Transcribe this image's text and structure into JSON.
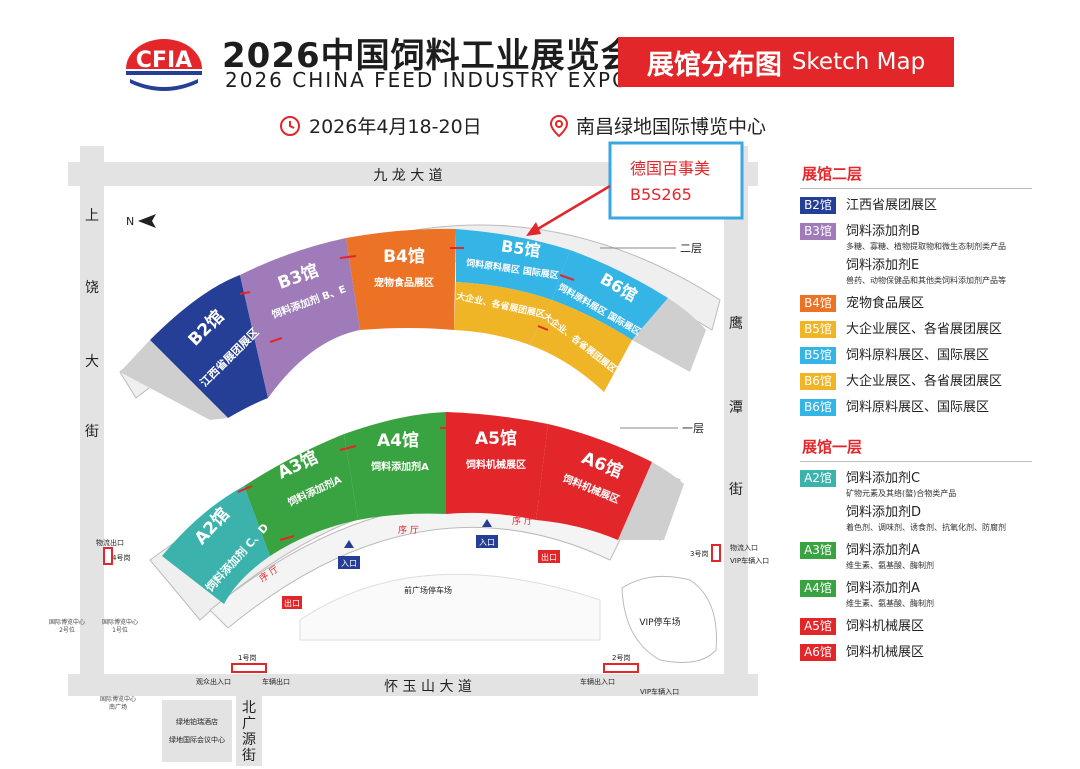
{
  "header": {
    "logo_text": "CFIA",
    "title_cn": "2026中国饲料工业展览会",
    "title_en": "2026 CHINA FEED INDUSTRY EXPO",
    "badge_cn": "展馆分布图",
    "badge_en": "Sketch Map",
    "date": "2026年4月18-20日",
    "venue": "南昌绿地国际博览中心"
  },
  "callout": {
    "line1": "德国百事美",
    "line2": "B5S265",
    "color": "#e3262a",
    "border": "#3aa7e0"
  },
  "roads": {
    "north": "九 龙 大 道",
    "south": "怀 玉 山 大 道",
    "west": [
      "上",
      "饶",
      "大",
      "街"
    ],
    "east": [
      "鹰",
      "潭",
      "街"
    ],
    "southwest": [
      "北",
      "广",
      "源",
      "街"
    ]
  },
  "floors": {
    "upper": "二层",
    "lower": "一层"
  },
  "compass": "N",
  "halls": [
    {
      "id": "B2",
      "name": "B2馆",
      "area": "江西省展团展区",
      "color": "#263f96"
    },
    {
      "id": "B3",
      "name": "B3馆",
      "area": "饲料添加剂 B、E",
      "color": "#9f7cb9"
    },
    {
      "id": "B4",
      "name": "B4馆",
      "area": "宠物食品展区",
      "color": "#ec7325"
    },
    {
      "id": "B5",
      "name": "B5馆",
      "area": "饲料原料展区 国际展区",
      "area2": "大企业、各省展团展区",
      "color": "#35b4e6",
      "color2": "#f0b427"
    },
    {
      "id": "B6",
      "name": "B6馆",
      "area": "饲料原料展区 国际展区",
      "area2": "大企业、各省展团展区",
      "color": "#35b4e6",
      "color2": "#f0b427"
    },
    {
      "id": "A2",
      "name": "A2馆",
      "area": "饲料添加剂 C、D",
      "color": "#3bb3ac"
    },
    {
      "id": "A3",
      "name": "A3馆",
      "area": "饲料添加剂A",
      "color": "#3aa341"
    },
    {
      "id": "A4",
      "name": "A4馆",
      "area": "饲料添加剂A",
      "color": "#3aa341"
    },
    {
      "id": "A5",
      "name": "A5馆",
      "area": "饲料机械展区",
      "color": "#e3262a"
    },
    {
      "id": "A6",
      "name": "A6馆",
      "area": "饲料机械展区",
      "color": "#e3262a"
    }
  ],
  "site_labels": {
    "front_parking": "前广场停车场",
    "vip_parking": "VIP停车场",
    "corridor": "序 厅",
    "entrance": "入口",
    "exit": "出口",
    "gate1": "1号岗",
    "gate2": "2号岗",
    "gate3": "3号岗",
    "gate4": "4号岗",
    "logistics_entry": "物流出口",
    "logistics_entry_e": "物流入口",
    "vip_vehicle_in": "VIP车辆入口",
    "visitor_gate": "观众出入口",
    "vehicle_exit": "车辆出口",
    "vehicle_gate": "车辆出入口",
    "vip_vehicle_in_s": "VIP车辆入口",
    "hotel1": "绿地铂瑞酒店",
    "hotel2": "绿地国际会议中心",
    "expo_a": "国际博览中心",
    "expo_a2": "2号位",
    "expo_b": "国际博览中心",
    "expo_b2": "1号位",
    "south_small1": "国际博览中心",
    "south_small2": "南广场"
  },
  "legend": {
    "upper_title": "展馆二层",
    "lower_title": "展馆一层",
    "upper": [
      {
        "tag": "B2馆",
        "color": "#263f96",
        "text": "江西省展团展区"
      },
      {
        "tag": "B3馆",
        "color": "#9f7cb9",
        "text": "饲料添加剂B",
        "sub": "多糖、寡糖、植物提取物和微生态制剂类产品"
      },
      {
        "tag": "",
        "color": "",
        "text": "饲料添加剂E",
        "sub": "兽药、动物保健品和其他类饲料添加剂产品等"
      },
      {
        "tag": "B4馆",
        "color": "#ec7325",
        "text": "宠物食品展区"
      },
      {
        "tag": "B5馆",
        "color": "#f0b427",
        "text": "大企业展区、各省展团展区"
      },
      {
        "tag": "B5馆",
        "color": "#35b4e6",
        "text": "饲料原料展区、国际展区"
      },
      {
        "tag": "B6馆",
        "color": "#f0b427",
        "text": "大企业展区、各省展团展区"
      },
      {
        "tag": "B6馆",
        "color": "#35b4e6",
        "text": "饲料原料展区、国际展区"
      }
    ],
    "lower": [
      {
        "tag": "A2馆",
        "color": "#3bb3ac",
        "text": "饲料添加剂C",
        "sub": "矿物元素及其络(螯)合物类产品"
      },
      {
        "tag": "",
        "color": "",
        "text": "饲料添加剂D",
        "sub": "着色剂、调味剂、诱食剂、抗氧化剂、防腐剂"
      },
      {
        "tag": "A3馆",
        "color": "#3aa341",
        "text": "饲料添加剂A",
        "sub": "维生素、氨基酸、酶制剂"
      },
      {
        "tag": "A4馆",
        "color": "#3aa341",
        "text": "饲料添加剂A",
        "sub": "维生素、氨基酸、酶制剂"
      },
      {
        "tag": "A5馆",
        "color": "#e3262a",
        "text": "饲料机械展区"
      },
      {
        "tag": "A6馆",
        "color": "#e3262a",
        "text": "饲料机械展区"
      }
    ]
  }
}
